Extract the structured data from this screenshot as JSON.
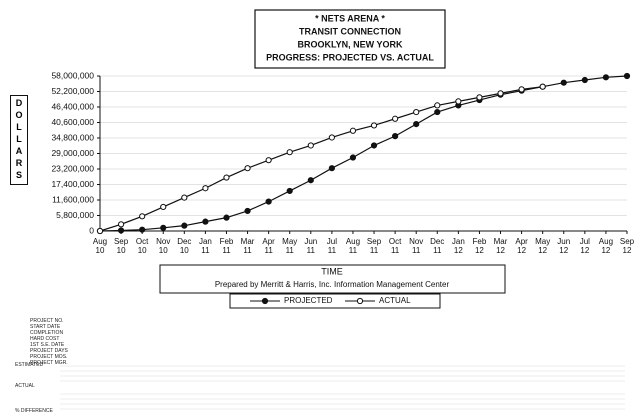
{
  "chart_data": {
    "type": "line",
    "title": [
      "* NETS ARENA *",
      "TRANSIT CONNECTION",
      "BROOKLYN, NEW YORK",
      "PROGRESS: PROJECTED VS. ACTUAL"
    ],
    "y_label": "DOLLARS",
    "x_label": "TIME",
    "subtitle": "Prepared by Merritt & Harris, Inc. Information Management Center",
    "categories": [
      "Aug\n10",
      "Sep\n10",
      "Oct\n10",
      "Nov\n10",
      "Dec\n10",
      "Jan\n11",
      "Feb\n11",
      "Mar\n11",
      "Apr\n11",
      "May\n11",
      "Jun\n11",
      "Jul\n11",
      "Aug\n11",
      "Sep\n11",
      "Oct\n11",
      "Nov\n11",
      "Dec\n11",
      "Jan\n12",
      "Feb\n12",
      "Mar\n12",
      "Apr\n12",
      "May\n12",
      "Jun\n12",
      "Jul\n12",
      "Aug\n12",
      "Sep\n12"
    ],
    "series": [
      {
        "name": "PROJECTED",
        "color": "#111111",
        "marker": "filled",
        "values": [
          0,
          200000,
          500000,
          1200000,
          2000000,
          3500000,
          5000000,
          7500000,
          11000000,
          15000000,
          19000000,
          23500000,
          27500000,
          32000000,
          35500000,
          40000000,
          44500000,
          47000000,
          49000000,
          51000000,
          52500000,
          54000000,
          55500000,
          56500000,
          57500000,
          58000000
        ]
      },
      {
        "name": "ACTUAL",
        "color": "#111111",
        "marker": "open",
        "values": [
          0,
          2500000,
          5500000,
          9000000,
          12500000,
          16000000,
          20000000,
          23500000,
          26500000,
          29500000,
          32000000,
          35000000,
          37500000,
          39500000,
          42000000,
          44500000,
          47000000,
          48500000,
          50000000,
          51500000,
          53000000,
          54000000,
          null,
          null,
          null,
          null
        ]
      }
    ],
    "ylim": [
      0,
      58000000
    ],
    "yticks": [
      0,
      {
        "value": 5800000,
        "label": "5,800,000"
      },
      {
        "value": 11600000,
        "label": "11,600,000"
      },
      {
        "value": 17400000,
        "label": "17,400,000"
      },
      {
        "value": 23200000,
        "label": "23,200,000"
      },
      {
        "value": 29000000,
        "label": "29,000,000"
      },
      {
        "value": 34800000,
        "label": "34,800,000"
      },
      {
        "value": 40600000,
        "label": "40,600,000"
      },
      {
        "value": 46400000,
        "label": "46,400,000"
      },
      {
        "value": 52200000,
        "label": "52,200,000"
      },
      {
        "value": 58000000,
        "label": "58,000,000"
      }
    ],
    "grid": true
  },
  "project_info": {
    "labels": [
      "PROJECT NO.",
      "START DATE",
      "COMPLETION",
      "HARD COST",
      "1ST S.E. DATE",
      "PROJECT DAYS",
      "PROJECT MOS.",
      "PROJECT MGR."
    ]
  },
  "table": {
    "row_headers": [
      "ESTIMATED",
      "ACTUAL",
      "% DIFFERENCE"
    ]
  }
}
